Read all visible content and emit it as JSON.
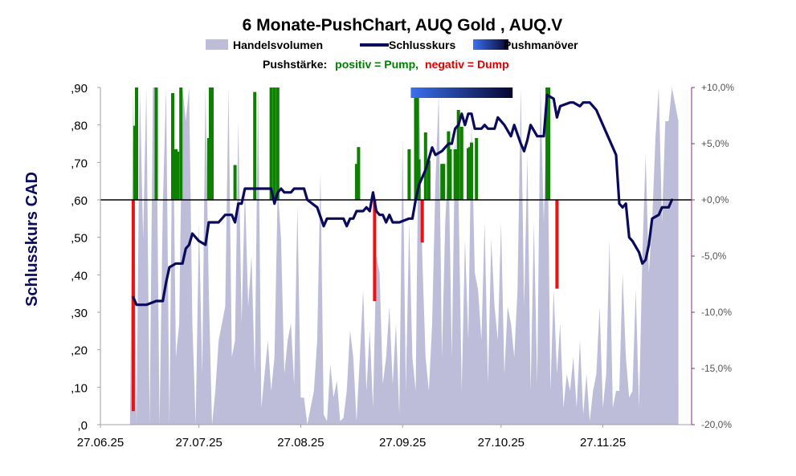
{
  "chart_data": {
    "type": "line",
    "title": "6 Monate-PushChart, AUQ Gold , AUQ.V",
    "ylabel": "Schlusskurs CAD",
    "ylim": [
      0,
      0.9
    ],
    "y2lim": [
      -20,
      10
    ],
    "legend": {
      "volume": "Handelsvolumen",
      "close": "Schlusskurs",
      "push": "Pushmanöver"
    },
    "push_legend": {
      "label": "Pushstärke:",
      "positive": "positiv = Pump,",
      "negative": "negativ = Dump",
      "positive_color": "#008000",
      "negative_color": "#e00000"
    },
    "y_ticks": [
      {
        "v": 0,
        "label": ",0"
      },
      {
        "v": 0.1,
        "label": ",10"
      },
      {
        "v": 0.2,
        "label": ",20"
      },
      {
        "v": 0.3,
        "label": ",30"
      },
      {
        "v": 0.4,
        "label": ",40"
      },
      {
        "v": 0.5,
        "label": ",50"
      },
      {
        "v": 0.6,
        "label": ",60"
      },
      {
        "v": 0.7,
        "label": ",70"
      },
      {
        "v": 0.8,
        "label": ",80"
      },
      {
        "v": 0.9,
        "label": ",90"
      }
    ],
    "y2_ticks": [
      {
        "v": 10,
        "label": "+10,0%"
      },
      {
        "v": 5,
        "label": "+5,0%"
      },
      {
        "v": 0,
        "label": "+0,0%"
      },
      {
        "v": -5,
        "label": "-5,0%"
      },
      {
        "v": -10,
        "label": "-10,0%"
      },
      {
        "v": -15,
        "label": "-15,0%"
      },
      {
        "v": -20,
        "label": "-20,0%"
      }
    ],
    "x_range": [
      0,
      180
    ],
    "x_ticks": [
      {
        "v": 0,
        "label": "27.06.25"
      },
      {
        "v": 30,
        "label": "27.07.25"
      },
      {
        "v": 61,
        "label": "27.08.25"
      },
      {
        "v": 92,
        "label": "27.09.25"
      },
      {
        "v": 122,
        "label": "27.10.25"
      },
      {
        "v": 153,
        "label": "27.11.25"
      }
    ],
    "reference_line_pct": 0,
    "close": [
      [
        10,
        0.34
      ],
      [
        11,
        0.32
      ],
      [
        13,
        0.32
      ],
      [
        14,
        0.32
      ],
      [
        17,
        0.33
      ],
      [
        19,
        0.33
      ],
      [
        20,
        0.38
      ],
      [
        21,
        0.42
      ],
      [
        23,
        0.43
      ],
      [
        25,
        0.43
      ],
      [
        26,
        0.47
      ],
      [
        27,
        0.48
      ],
      [
        28,
        0.51
      ],
      [
        30,
        0.49
      ],
      [
        32,
        0.48
      ],
      [
        33,
        0.54
      ],
      [
        36,
        0.54
      ],
      [
        38,
        0.56
      ],
      [
        40,
        0.56
      ],
      [
        41,
        0.54
      ],
      [
        42,
        0.59
      ],
      [
        43,
        0.59
      ],
      [
        44,
        0.63
      ],
      [
        52,
        0.63
      ],
      [
        53,
        0.59
      ],
      [
        54,
        0.62
      ],
      [
        55,
        0.63
      ],
      [
        56,
        0.62
      ],
      [
        58,
        0.62
      ],
      [
        59,
        0.63
      ],
      [
        62,
        0.63
      ],
      [
        63,
        0.6
      ],
      [
        66,
        0.58
      ],
      [
        68,
        0.53
      ],
      [
        69,
        0.55
      ],
      [
        74,
        0.55
      ],
      [
        75,
        0.53
      ],
      [
        76,
        0.55
      ],
      [
        77,
        0.55
      ],
      [
        78,
        0.57
      ],
      [
        80,
        0.57
      ],
      [
        81,
        0.58
      ],
      [
        82,
        0.57
      ],
      [
        83,
        0.62
      ],
      [
        84,
        0.57
      ],
      [
        85,
        0.56
      ],
      [
        86,
        0.56
      ],
      [
        87,
        0.54
      ],
      [
        88,
        0.56
      ],
      [
        89,
        0.54
      ],
      [
        91,
        0.54
      ],
      [
        94,
        0.55
      ],
      [
        95,
        0.55
      ],
      [
        96,
        0.6
      ],
      [
        97,
        0.64
      ],
      [
        99,
        0.68
      ],
      [
        101,
        0.74
      ],
      [
        102,
        0.72
      ],
      [
        104,
        0.73
      ],
      [
        106,
        0.75
      ],
      [
        107,
        0.75
      ],
      [
        108,
        0.79
      ],
      [
        109,
        0.8
      ],
      [
        110,
        0.83
      ],
      [
        111,
        0.8
      ],
      [
        112,
        0.83
      ],
      [
        113,
        0.83
      ],
      [
        114,
        0.79
      ],
      [
        116,
        0.79
      ],
      [
        117,
        0.8
      ],
      [
        118,
        0.79
      ],
      [
        120,
        0.79
      ],
      [
        121,
        0.82
      ],
      [
        123,
        0.8
      ],
      [
        125,
        0.77
      ],
      [
        126,
        0.8
      ],
      [
        128,
        0.75
      ],
      [
        129,
        0.73
      ],
      [
        130,
        0.76
      ],
      [
        131,
        0.8
      ],
      [
        133,
        0.77
      ],
      [
        135,
        0.77
      ],
      [
        136,
        0.88
      ],
      [
        138,
        0.87
      ],
      [
        139,
        0.82
      ],
      [
        140,
        0.85
      ],
      [
        143,
        0.86
      ],
      [
        144,
        0.86
      ],
      [
        146,
        0.85
      ],
      [
        147,
        0.86
      ],
      [
        149,
        0.86
      ],
      [
        151,
        0.84
      ],
      [
        153,
        0.8
      ],
      [
        155,
        0.76
      ],
      [
        157,
        0.72
      ],
      [
        158,
        0.59
      ],
      [
        159,
        0.58
      ],
      [
        160,
        0.59
      ],
      [
        161,
        0.5
      ],
      [
        162,
        0.49
      ],
      [
        164,
        0.46
      ],
      [
        165,
        0.43
      ],
      [
        166,
        0.44
      ],
      [
        167,
        0.48
      ],
      [
        168,
        0.55
      ],
      [
        170,
        0.56
      ],
      [
        171,
        0.58
      ],
      [
        173,
        0.58
      ],
      [
        174,
        0.6
      ]
    ],
    "volume": [
      [
        0,
        0
      ],
      [
        9,
        0
      ],
      [
        10,
        1
      ],
      [
        11,
        0
      ],
      [
        12,
        1
      ],
      [
        13,
        0.55
      ],
      [
        14,
        1
      ],
      [
        15,
        0
      ],
      [
        16,
        1
      ],
      [
        17,
        1
      ],
      [
        18,
        0
      ],
      [
        19,
        0.65
      ],
      [
        20,
        1
      ],
      [
        21,
        0
      ],
      [
        22,
        1
      ],
      [
        23,
        0.2
      ],
      [
        24,
        0.3
      ],
      [
        25,
        1
      ],
      [
        26,
        0.9
      ],
      [
        27,
        1
      ],
      [
        28,
        0.3
      ],
      [
        29,
        0
      ],
      [
        30,
        0.6
      ],
      [
        31,
        0.15
      ],
      [
        32,
        1
      ],
      [
        33,
        0.4
      ],
      [
        34,
        0
      ],
      [
        35,
        0.1
      ],
      [
        36,
        0.25
      ],
      [
        37,
        0.3
      ],
      [
        38,
        0.35
      ],
      [
        39,
        1
      ],
      [
        40,
        0.2
      ],
      [
        41,
        0.25
      ],
      [
        42,
        0.9
      ],
      [
        43,
        0.3
      ],
      [
        44,
        0.7
      ],
      [
        45,
        0.35
      ],
      [
        46,
        0.5
      ],
      [
        47,
        0.15
      ],
      [
        48,
        1
      ],
      [
        49,
        0.05
      ],
      [
        50,
        0.15
      ],
      [
        51,
        0.25
      ],
      [
        52,
        0.1
      ],
      [
        53,
        0.2
      ],
      [
        54,
        0.7
      ],
      [
        55,
        0.55
      ],
      [
        56,
        0.15
      ],
      [
        57,
        0.25
      ],
      [
        58,
        0.3
      ],
      [
        59,
        0.12
      ],
      [
        60,
        0.65
      ],
      [
        61,
        0.08
      ],
      [
        62,
        0.08
      ],
      [
        63,
        0
      ],
      [
        64,
        0.05
      ],
      [
        65,
        0.1
      ],
      [
        66,
        0.25
      ],
      [
        67,
        0.75
      ],
      [
        68,
        0.03
      ],
      [
        69,
        0.01
      ],
      [
        70,
        0.18
      ],
      [
        71,
        0.08
      ],
      [
        72,
        0.13
      ],
      [
        73,
        0.01
      ],
      [
        74,
        0.02
      ],
      [
        75,
        0.1
      ],
      [
        76,
        0.28
      ],
      [
        77,
        0.2
      ],
      [
        78,
        0.01
      ],
      [
        79,
        0.2
      ],
      [
        80,
        0.4
      ],
      [
        81,
        0.1
      ],
      [
        82,
        0.28
      ],
      [
        83,
        0.05
      ],
      [
        84,
        0.5
      ],
      [
        85,
        0.45
      ],
      [
        86,
        0.12
      ],
      [
        87,
        0.2
      ],
      [
        88,
        0.35
      ],
      [
        89,
        0.12
      ],
      [
        90,
        0.3
      ],
      [
        91,
        0.03
      ],
      [
        92,
        0.85
      ],
      [
        93,
        0.1
      ],
      [
        94,
        0.6
      ],
      [
        95,
        0.2
      ],
      [
        96,
        0.1
      ],
      [
        97,
        1
      ],
      [
        98,
        0.5
      ],
      [
        99,
        0.2
      ],
      [
        100,
        0.1
      ],
      [
        101,
        0.3
      ],
      [
        102,
        0.72
      ],
      [
        103,
        0.98
      ],
      [
        104,
        0.2
      ],
      [
        105,
        0.6
      ],
      [
        106,
        0.8
      ],
      [
        107,
        0.2
      ],
      [
        108,
        0.85
      ],
      [
        109,
        0.7
      ],
      [
        110,
        0.1
      ],
      [
        111,
        0.55
      ],
      [
        112,
        0.25
      ],
      [
        113,
        0.9
      ],
      [
        114,
        0.45
      ],
      [
        115,
        0.4
      ],
      [
        116,
        0.25
      ],
      [
        117,
        0.6
      ],
      [
        118,
        0.12
      ],
      [
        119,
        0.55
      ],
      [
        120,
        0.35
      ],
      [
        121,
        0.25
      ],
      [
        122,
        0.6
      ],
      [
        123,
        0.15
      ],
      [
        124,
        0.35
      ],
      [
        125,
        0.3
      ],
      [
        126,
        0.2
      ],
      [
        127,
        0.4
      ],
      [
        128,
        1
      ],
      [
        129,
        0.35
      ],
      [
        130,
        0.8
      ],
      [
        131,
        0.1
      ],
      [
        132,
        0.6
      ],
      [
        133,
        0.12
      ],
      [
        134,
        1
      ],
      [
        135,
        0.6
      ],
      [
        136,
        1
      ],
      [
        137,
        0.1
      ],
      [
        138,
        0.4
      ],
      [
        139,
        0.15
      ],
      [
        140,
        0.3
      ],
      [
        141,
        0.05
      ],
      [
        142,
        0.15
      ],
      [
        143,
        0.1
      ],
      [
        144,
        0.2
      ],
      [
        145,
        0.05
      ],
      [
        146,
        0.25
      ],
      [
        147,
        0.03
      ],
      [
        148,
        0.15
      ],
      [
        149,
        0.01
      ],
      [
        150,
        0.1
      ],
      [
        151,
        0.15
      ],
      [
        152,
        0.35
      ],
      [
        153,
        0.05
      ],
      [
        154,
        0.15
      ],
      [
        155,
        0.55
      ],
      [
        156,
        0.05
      ],
      [
        157,
        0.1
      ],
      [
        158,
        0.1
      ],
      [
        159,
        0.45
      ],
      [
        160,
        0.2
      ],
      [
        161,
        0.08
      ],
      [
        162,
        0.1
      ],
      [
        163,
        0.4
      ],
      [
        164,
        0.05
      ],
      [
        165,
        0.5
      ],
      [
        166,
        0.8
      ],
      [
        167,
        0.45
      ],
      [
        168,
        0.6
      ],
      [
        169,
        0.85
      ],
      [
        170,
        1
      ],
      [
        171,
        0.6
      ],
      [
        172,
        0.9
      ],
      [
        173,
        0.9
      ],
      [
        174,
        1
      ],
      [
        175,
        0.95
      ],
      [
        176,
        0.9
      ]
    ],
    "push_bars": [
      [
        10,
        -18.8
      ],
      [
        10.5,
        6.6
      ],
      [
        11,
        10
      ],
      [
        17,
        10
      ],
      [
        22,
        9.5
      ],
      [
        23,
        4.5
      ],
      [
        23.5,
        4.3
      ],
      [
        24.5,
        10
      ],
      [
        33,
        5.5
      ],
      [
        33.5,
        10
      ],
      [
        34,
        10
      ],
      [
        41,
        3.1
      ],
      [
        47,
        9.6
      ],
      [
        52,
        10
      ],
      [
        53,
        10
      ],
      [
        54,
        10
      ],
      [
        78,
        3.2
      ],
      [
        78.6,
        4.7
      ],
      [
        83.5,
        -9
      ],
      [
        94,
        4.5
      ],
      [
        96,
        10
      ],
      [
        96.5,
        9.5
      ],
      [
        97,
        3.6
      ],
      [
        98,
        -3.8
      ],
      [
        99,
        6
      ],
      [
        100,
        3.5
      ],
      [
        104,
        3.2
      ],
      [
        104.5,
        3.2
      ],
      [
        106,
        6.1
      ],
      [
        106.5,
        4.5
      ],
      [
        108,
        4.5
      ],
      [
        108.6,
        4.5
      ],
      [
        109,
        8
      ],
      [
        110,
        6.5
      ],
      [
        112,
        4.6
      ],
      [
        112.5,
        4.7
      ],
      [
        113,
        5.1
      ],
      [
        114.5,
        5.5
      ],
      [
        136,
        10
      ],
      [
        136.5,
        10
      ],
      [
        139,
        -7.9
      ]
    ],
    "push_maneuver": {
      "start": 94.5,
      "end": 125.5,
      "gradient": [
        "#3b70f0",
        "#05052e"
      ]
    },
    "colors": {
      "volume": "#bdbdd9",
      "close": "#0a0a5c",
      "pump": "#0e8000",
      "dump": "#ee1111",
      "right_axis": "#8a2a8a"
    }
  }
}
